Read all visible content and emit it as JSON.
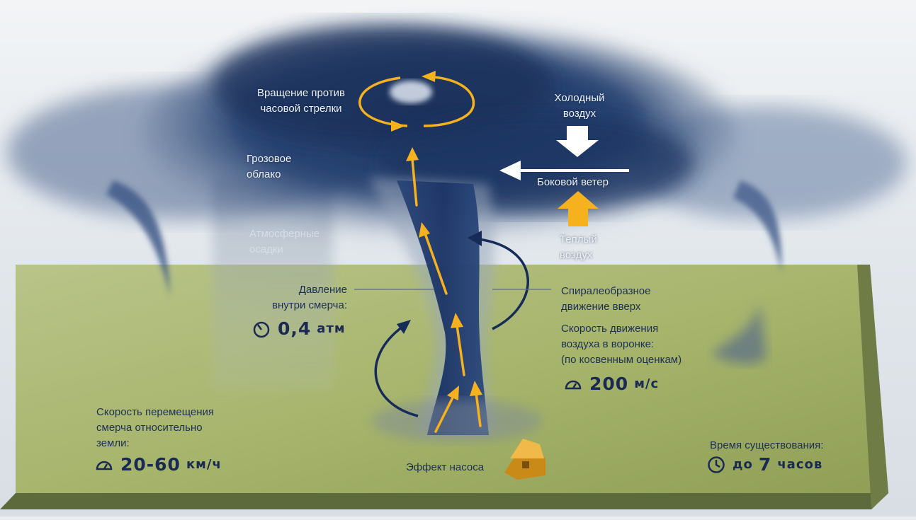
{
  "labels": {
    "rotation": [
      "Вращение против",
      "часовой стрелки"
    ],
    "cold_air": [
      "Холодный",
      "воздух"
    ],
    "storm_cloud": [
      "Грозовое",
      "облако"
    ],
    "side_wind": "Боковой ветер",
    "precipitation": [
      "Атмосферные",
      "осадки"
    ],
    "warm_air": [
      "Теплый",
      "воздух"
    ],
    "pressure": [
      "Давление",
      "внутри смерча:"
    ],
    "spiral": [
      "Спиралеобразное",
      "движение вверх"
    ],
    "funnel_speed": [
      "Скорость движения",
      "воздуха в воронке:",
      "(по косвенным оценкам)"
    ],
    "travel_speed": [
      "Скорость перемещения",
      "смерча относительно",
      "земли:"
    ],
    "pump_effect": "Эффект насоса",
    "lifetime": "Время существования:"
  },
  "values": {
    "pressure": {
      "number": "0,4",
      "unit": "атм"
    },
    "funnel_speed": {
      "number": "200",
      "unit": "м/с"
    },
    "travel_speed": {
      "number": "20-60",
      "unit": "км/ч"
    },
    "lifetime": {
      "prefix": "до",
      "number": "7",
      "unit": "часов"
    }
  },
  "colors": {
    "arrow_yellow": "#f5b21e",
    "cloud_dark": "#1d3563",
    "ground": "#a6b56e",
    "text_dark": "#1e2f55"
  },
  "icons": [
    "gauge-icon",
    "speedometer-icon",
    "clock-icon",
    "house-icon"
  ]
}
